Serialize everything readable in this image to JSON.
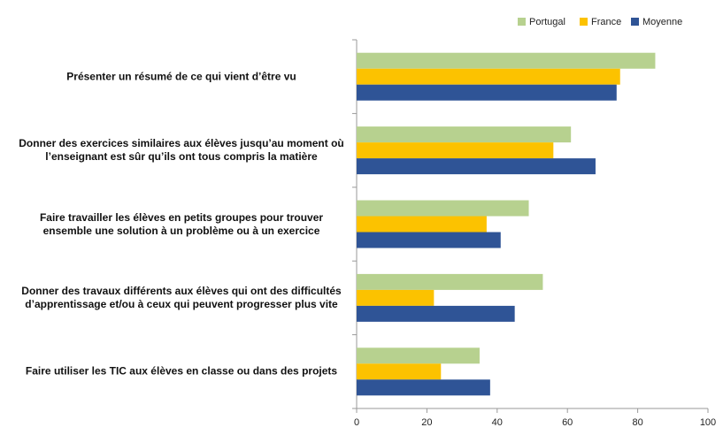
{
  "chart_data": {
    "type": "hbar",
    "categories": [
      "Présenter un résumé de ce qui vient d’être vu",
      "Donner des exercices similaires aux élèves jusqu’au moment où l’enseignant est sûr qu’ils ont tous compris la matière",
      "Faire travailler les élèves en petits groupes pour trouver ensemble une solution à un problème ou à un exercice",
      "Donner des travaux différents aux élèves qui ont des difficultés d’apprentissage et/ou à ceux qui peuvent progresser plus vite",
      "Faire utiliser les TIC aux élèves en classe ou dans des projets"
    ],
    "series": [
      {
        "name": "Portugal",
        "color": "#b7d18f",
        "values": [
          85,
          61,
          49,
          53,
          35
        ]
      },
      {
        "name": "France",
        "color": "#fcc200",
        "values": [
          75,
          56,
          37,
          22,
          24
        ]
      },
      {
        "name": "Moyenne",
        "color": "#2f5496",
        "values": [
          74,
          68,
          41,
          45,
          38
        ]
      }
    ],
    "xlim": [
      0,
      100
    ],
    "xticks": [
      0,
      20,
      40,
      60,
      80,
      100
    ],
    "grid": false,
    "legend": "top-right"
  }
}
